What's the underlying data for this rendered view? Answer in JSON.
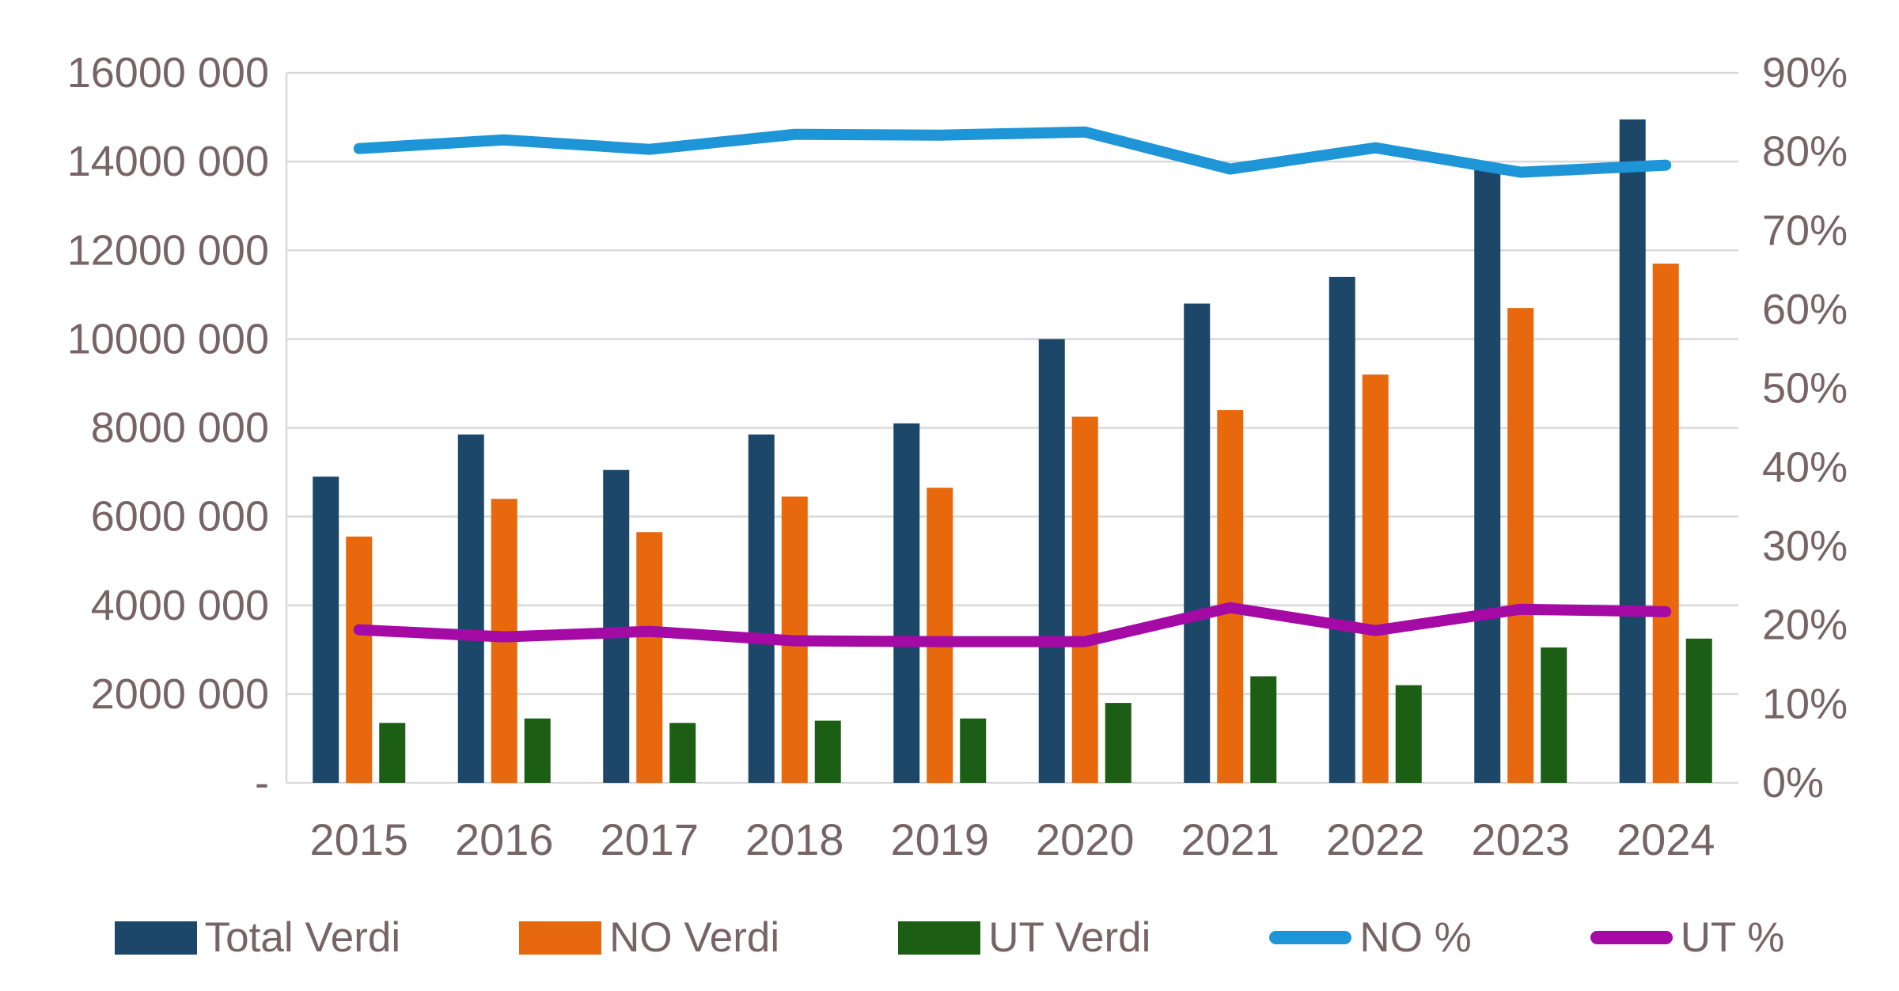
{
  "styles": {
    "text_color": "#766468",
    "grid_color": "#D9D9D9",
    "background": "#FFFFFF"
  },
  "chart_data": {
    "type": "combo-bar-line",
    "title": "",
    "xlabel": "",
    "ylabel": "",
    "grid": true,
    "legend_position": "bottom",
    "categories": [
      "2015",
      "2016",
      "2017",
      "2018",
      "2019",
      "2020",
      "2021",
      "2022",
      "2023",
      "2024"
    ],
    "series": [
      {
        "name": "Total Verdi",
        "type": "bar",
        "axis": "left",
        "color": "#1D4769",
        "values": [
          6900000,
          7850000,
          7050000,
          7850000,
          8100000,
          10000000,
          10800000,
          11400000,
          13850000,
          14950000
        ]
      },
      {
        "name": "NO Verdi",
        "type": "bar",
        "axis": "left",
        "color": "#E8680E",
        "values": [
          5550000,
          6400000,
          5650000,
          6450000,
          6650000,
          8250000,
          8400000,
          9200000,
          10700000,
          11700000
        ]
      },
      {
        "name": "UT Verdi",
        "type": "bar",
        "axis": "left",
        "color": "#1C5E14",
        "values": [
          1350000,
          1450000,
          1350000,
          1400000,
          1450000,
          1800000,
          2400000,
          2200000,
          3050000,
          3250000
        ]
      },
      {
        "name": "NO %",
        "type": "line",
        "axis": "right",
        "color": "#1E95D6",
        "values": [
          80.4,
          81.5,
          80.3,
          82.2,
          82.1,
          82.5,
          77.8,
          80.5,
          77.4,
          78.3
        ]
      },
      {
        "name": "UT %",
        "type": "line",
        "axis": "right",
        "color": "#A50AA5",
        "values": [
          19.4,
          18.5,
          19.2,
          18.0,
          17.9,
          17.9,
          22.2,
          19.3,
          22.0,
          21.7
        ]
      }
    ],
    "left_axis": {
      "min": 0,
      "max": 16000000,
      "step": 2000000,
      "tick_labels": [
        "-",
        "2000 000",
        "4000 000",
        "6000 000",
        "8000 000",
        "10000 000",
        "12000 000",
        "14000 000",
        "16000 000"
      ]
    },
    "right_axis": {
      "min": 0,
      "max": 90,
      "step": 10,
      "tick_labels": [
        "0%",
        "10%",
        "20%",
        "30%",
        "40%",
        "50%",
        "60%",
        "70%",
        "80%",
        "90%"
      ]
    }
  }
}
